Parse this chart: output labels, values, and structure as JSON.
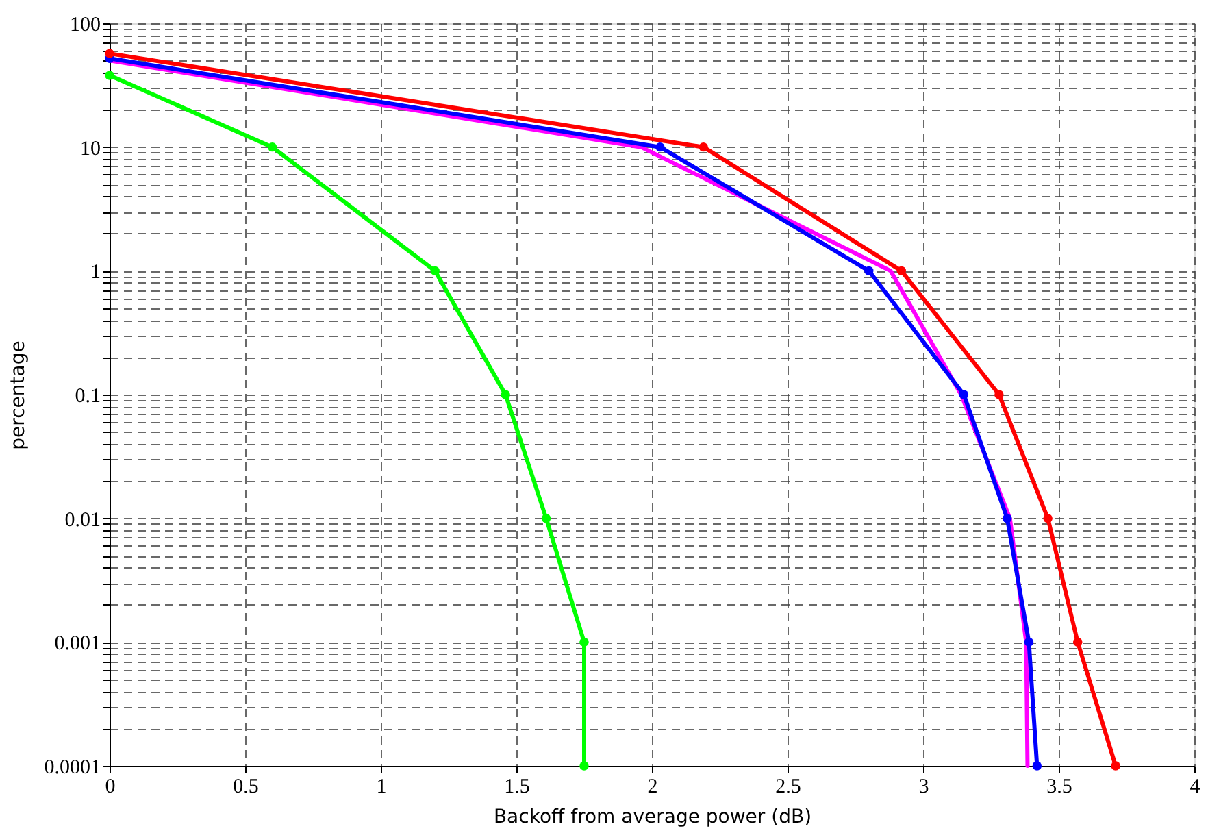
{
  "chart_data": {
    "type": "line",
    "xlabel": "Backoff from average power (dB)",
    "ylabel": "percentage",
    "log": "y",
    "grid": true,
    "xlim": [
      0,
      4
    ],
    "xticks": [
      0,
      0.5,
      1,
      1.5,
      2,
      2.5,
      3,
      3.5,
      4
    ],
    "ylim": [
      0.0001,
      100
    ],
    "yticks": [
      0.0001,
      {
        "value": 0.0002,
        "label": null
      },
      {
        "value": 0.0003,
        "label": null
      },
      {
        "value": 0.0004,
        "label": null
      },
      {
        "value": 0.0005,
        "label": null
      },
      {
        "value": 0.0006,
        "label": null
      },
      {
        "value": 0.0007,
        "label": null
      },
      {
        "value": 0.0008,
        "label": null
      },
      {
        "value": 0.0009,
        "label": null
      },
      0.001,
      {
        "value": 0.002,
        "label": null
      },
      {
        "value": 0.003,
        "label": null
      },
      {
        "value": 0.004,
        "label": null
      },
      {
        "value": 0.005,
        "label": null
      },
      {
        "value": 0.006,
        "label": null
      },
      {
        "value": 0.007,
        "label": null
      },
      {
        "value": 0.008,
        "label": null
      },
      {
        "value": 0.009,
        "label": null
      },
      0.01,
      {
        "value": 0.02,
        "label": null
      },
      {
        "value": 0.03,
        "label": null
      },
      {
        "value": 0.04,
        "label": null
      },
      {
        "value": 0.05,
        "label": null
      },
      {
        "value": 0.06,
        "label": null
      },
      {
        "value": 0.07,
        "label": null
      },
      {
        "value": 0.08,
        "label": null
      },
      {
        "value": 0.09,
        "label": null
      },
      0.1,
      {
        "value": 0.2,
        "label": null
      },
      {
        "value": 0.3,
        "label": null
      },
      {
        "value": 0.4,
        "label": null
      },
      {
        "value": 0.5,
        "label": null
      },
      {
        "value": 0.6,
        "label": null
      },
      {
        "value": 0.7,
        "label": null
      },
      {
        "value": 0.8,
        "label": null
      },
      {
        "value": 0.9,
        "label": null
      },
      1,
      {
        "value": 2,
        "label": null
      },
      {
        "value": 3,
        "label": null
      },
      {
        "value": 4,
        "label": null
      },
      {
        "value": 5,
        "label": null
      },
      {
        "value": 6,
        "label": null
      },
      {
        "value": 7,
        "label": null
      },
      {
        "value": 8,
        "label": null
      },
      {
        "value": 9,
        "label": null
      },
      10,
      {
        "value": 20,
        "label": null
      },
      {
        "value": 30,
        "label": null
      },
      {
        "value": 40,
        "label": null
      },
      {
        "value": 50,
        "label": null
      },
      {
        "value": 60,
        "label": null
      },
      {
        "value": 70,
        "label": null
      },
      {
        "value": 80,
        "label": null
      },
      {
        "value": 90,
        "label": null
      },
      100
    ],
    "series": [
      {
        "color": "#ff00ff",
        "marker": "none",
        "x": [
          0,
          1.96,
          2.88,
          3.14,
          3.32,
          3.38,
          3.385
        ],
        "values": [
          50,
          10,
          1,
          0.1,
          0.01,
          0.001,
          0.0001
        ]
      },
      {
        "color": "#0000ff",
        "marker": "circle",
        "x": [
          0,
          2.03,
          2.8,
          3.15,
          3.31,
          3.39,
          3.42
        ],
        "values": [
          52,
          10,
          1,
          0.1,
          0.01,
          0.001,
          0.0001
        ]
      },
      {
        "color": "#ff0000",
        "marker": "circle",
        "x": [
          0,
          2.19,
          2.92,
          3.28,
          3.46,
          3.57,
          3.71
        ],
        "values": [
          57,
          10,
          1,
          0.1,
          0.01,
          0.001,
          0.0001
        ]
      },
      {
        "color": "#00ff00",
        "marker": "circle",
        "x": [
          0,
          0.6,
          1.2,
          1.46,
          1.61,
          1.75,
          1.75
        ],
        "values": [
          38,
          10,
          1,
          0.1,
          0.01,
          0.001,
          0.0001
        ]
      }
    ]
  }
}
